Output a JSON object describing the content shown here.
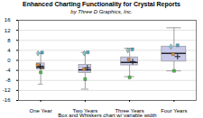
{
  "chart_data": {
    "type": "box",
    "title": "Enhanced Charting Functionality for Crystal Reports",
    "subtitle": "by Three D Graphics, Inc.",
    "xlabel": "Box and Whiskers chart w/ variable width",
    "x": [
      1,
      2,
      3,
      4
    ],
    "widths": [
      0.18,
      0.28,
      0.38,
      0.55
    ],
    "q1": [
      -3.5,
      -5.0,
      -2.0,
      -0.5
    ],
    "median": [
      -2.8,
      -3.8,
      -0.8,
      2.8
    ],
    "q3": [
      -1.2,
      -1.8,
      1.2,
      5.5
    ],
    "whisker_low": [
      -9.5,
      -11.5,
      -6.5,
      -4.2
    ],
    "whisker_high": [
      3.0,
      3.2,
      4.8,
      13.0
    ],
    "color": "#c8c8e8",
    "points": [
      {
        "x": 0.93,
        "y": -1.8,
        "marker": "square",
        "color": "#dd8833"
      },
      {
        "x": 1.04,
        "y": -2.8,
        "marker": "square",
        "color": "#555555"
      },
      {
        "x": 0.99,
        "y": -2.4,
        "marker": "plus",
        "color": "#222222"
      },
      {
        "x": 0.94,
        "y": 2.8,
        "marker": "diamond",
        "color": "#88cccc"
      },
      {
        "x": 1.03,
        "y": 3.1,
        "marker": "square",
        "color": "#44aacc"
      },
      {
        "x": 1.0,
        "y": -4.8,
        "marker": "square",
        "color": "#44bb44"
      },
      {
        "x": 1.97,
        "y": -3.5,
        "marker": "square",
        "color": "#dd8833"
      },
      {
        "x": 2.05,
        "y": -3.0,
        "marker": "plus",
        "color": "#222222"
      },
      {
        "x": 1.98,
        "y": 2.8,
        "marker": "diamond",
        "color": "#88cccc"
      },
      {
        "x": 2.06,
        "y": 3.2,
        "marker": "square",
        "color": "#44aacc"
      },
      {
        "x": 2.0,
        "y": -7.5,
        "marker": "square",
        "color": "#44bb44"
      },
      {
        "x": 2.98,
        "y": 0.3,
        "marker": "square",
        "color": "#dd8833"
      },
      {
        "x": 3.07,
        "y": -0.5,
        "marker": "plus",
        "color": "#222222"
      },
      {
        "x": 2.96,
        "y": 4.0,
        "marker": "diamond",
        "color": "#88cccc"
      },
      {
        "x": 3.06,
        "y": 4.4,
        "marker": "square",
        "color": "#44aacc"
      },
      {
        "x": 3.0,
        "y": -6.8,
        "marker": "square",
        "color": "#44bb44"
      },
      {
        "x": 3.98,
        "y": 2.5,
        "marker": "square",
        "color": "#dd8833"
      },
      {
        "x": 4.08,
        "y": 1.5,
        "marker": "plus",
        "color": "#222222"
      },
      {
        "x": 3.93,
        "y": 5.5,
        "marker": "diamond",
        "color": "#88cccc"
      },
      {
        "x": 4.08,
        "y": 6.0,
        "marker": "square",
        "color": "#44aacc"
      },
      {
        "x": 4.0,
        "y": -4.2,
        "marker": "square",
        "color": "#44bb44"
      }
    ],
    "xlim": [
      0.5,
      4.5
    ],
    "xticks": [
      {
        "value": 1,
        "label": "One Year"
      },
      {
        "value": 2,
        "label": "Two Years"
      },
      {
        "value": 3,
        "label": "Three Years"
      },
      {
        "value": 4,
        "label": "Four Years"
      }
    ],
    "ylim": [
      -16,
      16
    ],
    "yticks": [
      -16,
      -12,
      -8,
      -4,
      0,
      4,
      8,
      12,
      16
    ],
    "grid": true
  }
}
